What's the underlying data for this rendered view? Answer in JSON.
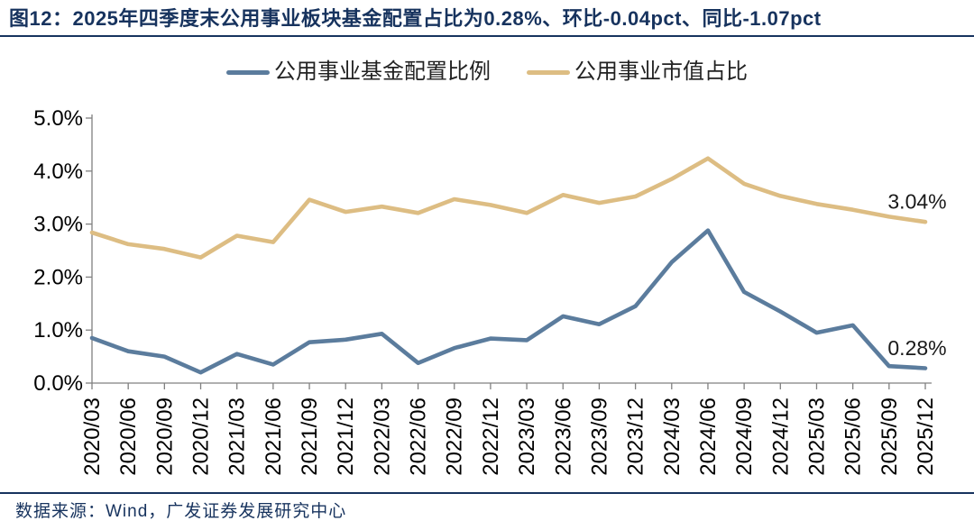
{
  "header": {
    "title": "图12：2025年四季度末公用事业板块基金配置占比为0.28%、环比-0.04pct、同比-1.07pct"
  },
  "footer": {
    "source": "数据来源：Wind，广发证券发展研究中心"
  },
  "colors": {
    "navy": "#17335E",
    "fund_line": "#5B7C9D",
    "market_line": "#DDBD83",
    "axis": "#808080",
    "tick_text": "#000000",
    "annotation_text": "#1A1A1A"
  },
  "chart_data": {
    "type": "line",
    "grid": false,
    "legend_position": "top",
    "xlabel": "",
    "ylabel": "",
    "ylim": [
      0,
      5
    ],
    "y_ticks": [
      "0.0%",
      "1.0%",
      "2.0%",
      "3.0%",
      "4.0%",
      "5.0%"
    ],
    "categories": [
      "2020/03",
      "2020/06",
      "2020/09",
      "2020/12",
      "2021/03",
      "2021/06",
      "2021/09",
      "2021/12",
      "2022/03",
      "2022/06",
      "2022/09",
      "2022/12",
      "2023/03",
      "2023/06",
      "2023/09",
      "2023/12",
      "2024/03",
      "2024/06",
      "2024/09",
      "2024/12",
      "2025/03",
      "2025/06",
      "2025/09",
      "2025/12"
    ],
    "series": [
      {
        "name": "公用事业基金配置比例",
        "color_key": "fund_line",
        "end_label": "0.28%",
        "values": [
          0.85,
          0.6,
          0.5,
          0.2,
          0.55,
          0.35,
          0.77,
          0.82,
          0.93,
          0.38,
          0.66,
          0.84,
          0.81,
          1.26,
          1.11,
          1.45,
          2.28,
          2.88,
          1.72,
          1.35,
          0.95,
          1.09,
          0.32,
          0.28
        ]
      },
      {
        "name": "公用事业市值占比",
        "color_key": "market_line",
        "end_label": "3.04%",
        "values": [
          2.84,
          2.62,
          2.53,
          2.37,
          2.78,
          2.66,
          3.46,
          3.23,
          3.33,
          3.21,
          3.47,
          3.36,
          3.21,
          3.55,
          3.4,
          3.52,
          3.85,
          4.24,
          3.76,
          3.53,
          3.38,
          3.27,
          3.14,
          3.04
        ]
      }
    ]
  }
}
